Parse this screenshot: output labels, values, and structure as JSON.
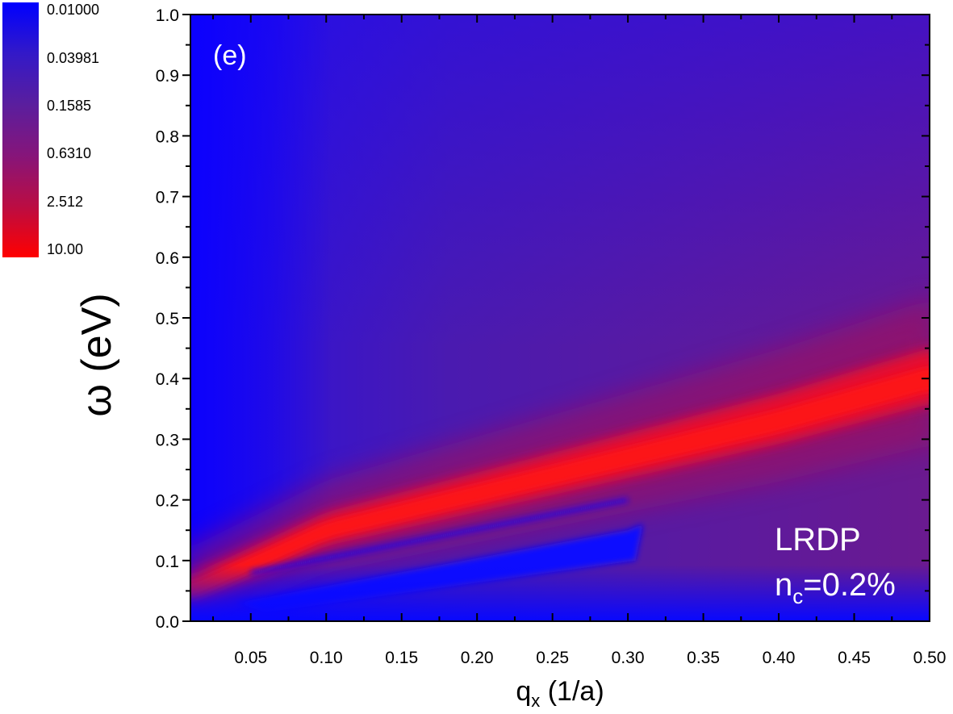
{
  "chart_data": {
    "type": "heatmap",
    "panel_label": "(e)",
    "xlabel": {
      "main": "q",
      "sub": "x",
      "rest": " (1/a)"
    },
    "ylabel": "ω (eV)",
    "xlim": [
      0.01,
      0.5
    ],
    "ylim": [
      0.0,
      1.0
    ],
    "x_ticks": [
      "0.05",
      "0.10",
      "0.15",
      "0.20",
      "0.25",
      "0.30",
      "0.35",
      "0.40",
      "0.45",
      "0.50"
    ],
    "y_ticks": [
      "0.0",
      "0.1",
      "0.2",
      "0.3",
      "0.4",
      "0.5",
      "0.6",
      "0.7",
      "0.8",
      "0.9",
      "1.0"
    ],
    "colorbar": {
      "scale": "log",
      "range": [
        0.01,
        10.0
      ],
      "labels": [
        "0.01000",
        "0.03981",
        "0.1585",
        "0.6310",
        "2.512",
        "10.00"
      ],
      "colors": [
        "#0000ff",
        "#3319c8",
        "#5a1e9e",
        "#86157a",
        "#bb0d43",
        "#ff0000"
      ]
    },
    "annotations": {
      "model": "LRDP",
      "conc_main": "n",
      "conc_sub": "c",
      "conc_rest": "=0.2%"
    },
    "features": {
      "main_branch": {
        "omega_at_q": [
          [
            0.01,
            0.05
          ],
          [
            0.1,
            0.15
          ],
          [
            0.2,
            0.21
          ],
          [
            0.3,
            0.27
          ],
          [
            0.4,
            0.33
          ],
          [
            0.5,
            0.4
          ]
        ],
        "peak_intensity": 10.0
      },
      "lower_gap_region": {
        "q_range": [
          0.05,
          0.31
        ],
        "omega_top_at_q": [
          [
            0.05,
            0.04
          ],
          [
            0.3,
            0.2
          ]
        ],
        "intensity": 0.01
      }
    }
  }
}
